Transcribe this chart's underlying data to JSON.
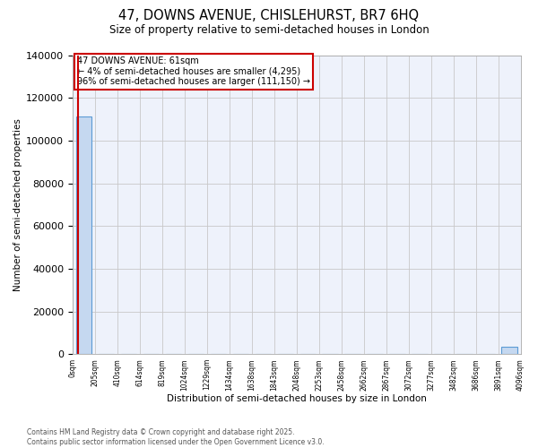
{
  "title_line1": "47, DOWNS AVENUE, CHISLEHURST, BR7 6HQ",
  "title_line2": "Size of property relative to semi-detached houses in London",
  "xlabel": "Distribution of semi-detached houses by size in London",
  "ylabel": "Number of semi-detached properties",
  "annotation_title": "47 DOWNS AVENUE: 61sqm",
  "annotation_line2": "← 4% of semi-detached houses are smaller (4,295)",
  "annotation_line3": "96% of semi-detached houses are larger (111,150) →",
  "footer_line1": "Contains HM Land Registry data © Crown copyright and database right 2025.",
  "footer_line2": "Contains public sector information licensed under the Open Government Licence v3.0.",
  "bar_values": [
    111150,
    0,
    0,
    0,
    0,
    0,
    0,
    0,
    0,
    0,
    0,
    0,
    0,
    0,
    0,
    0,
    0,
    0,
    0,
    3500
  ],
  "bin_labels": [
    "0sqm",
    "205sqm",
    "410sqm",
    "614sqm",
    "819sqm",
    "1024sqm",
    "1229sqm",
    "1434sqm",
    "1638sqm",
    "1843sqm",
    "2048sqm",
    "2253sqm",
    "2458sqm",
    "2662sqm",
    "2867sqm",
    "3072sqm",
    "3277sqm",
    "3482sqm",
    "3686sqm",
    "3891sqm",
    "4096sqm"
  ],
  "bar_color": "#c5d8f0",
  "bar_edge_color": "#5b9bd5",
  "red_line_color": "#cc0000",
  "grid_color": "#c8c8c8",
  "bg_color": "#eef2fb",
  "annotation_box_color": "#cc0000",
  "red_line_x": -0.28,
  "ylim": [
    0,
    140000
  ],
  "yticks": [
    0,
    20000,
    40000,
    60000,
    80000,
    100000,
    120000,
    140000
  ]
}
